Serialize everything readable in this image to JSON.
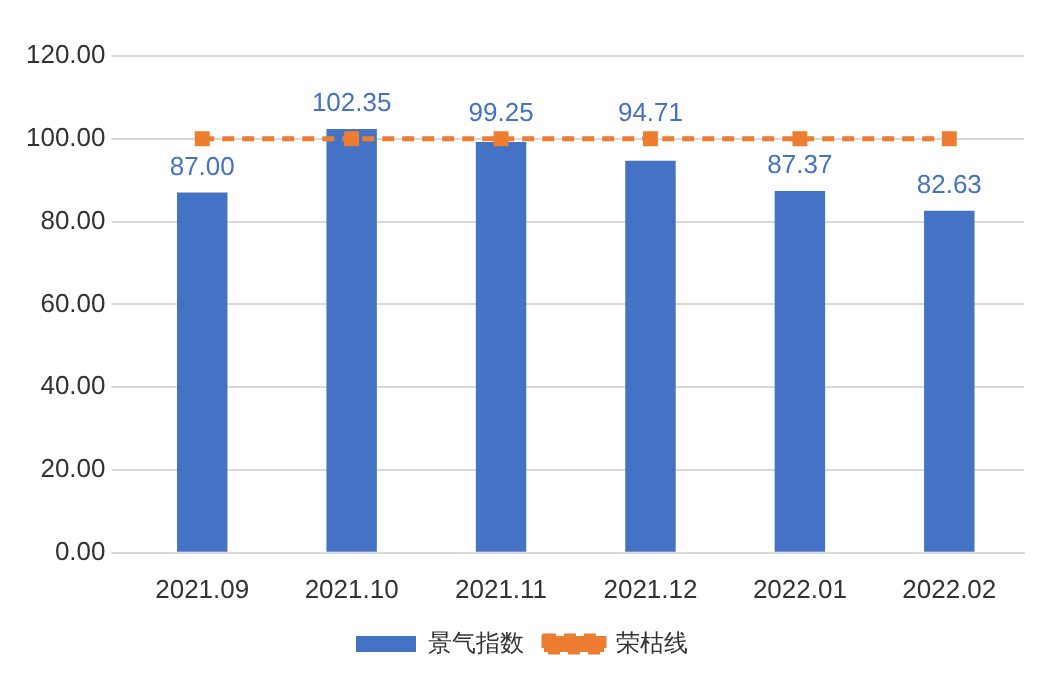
{
  "chart_data": {
    "type": "bar",
    "categories": [
      "2021.09",
      "2021.10",
      "2021.11",
      "2021.12",
      "2022.01",
      "2022.02"
    ],
    "series": [
      {
        "name": "景气指数",
        "color": "#4472c4",
        "values": [
          87.0,
          102.35,
          99.25,
          94.71,
          87.37,
          82.63
        ],
        "value_labels": [
          "87.00",
          "102.35",
          "99.25",
          "94.71",
          "87.37",
          "82.63"
        ]
      },
      {
        "name": "荣枯线",
        "type": "line",
        "color": "#ed7d31",
        "values": [
          100,
          100,
          100,
          100,
          100,
          100
        ],
        "line_style": "dashed",
        "marker": "square"
      }
    ],
    "ylim": [
      0,
      120
    ],
    "yticks": [
      {
        "value": 0,
        "label": "0.00"
      },
      {
        "value": 20,
        "label": "20.00"
      },
      {
        "value": 40,
        "label": "40.00"
      },
      {
        "value": 60,
        "label": "60.00"
      },
      {
        "value": 80,
        "label": "80.00"
      },
      {
        "value": 100,
        "label": "100.00"
      },
      {
        "value": 120,
        "label": "120.00"
      }
    ],
    "grid": "y",
    "legend": "bottom"
  }
}
